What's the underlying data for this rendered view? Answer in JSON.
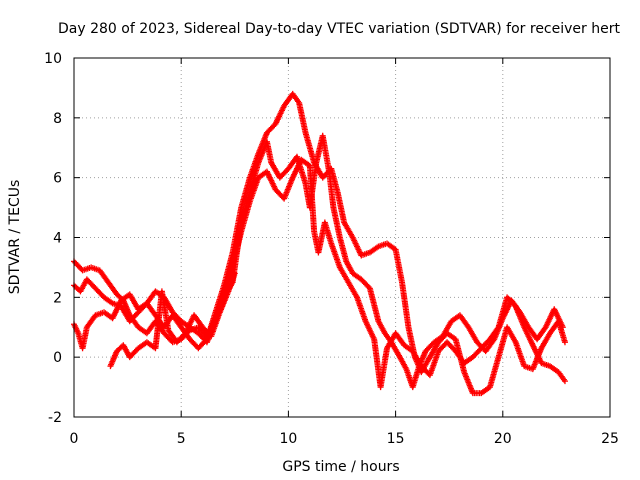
{
  "chart_data": {
    "type": "scatter",
    "title": "Day 280 of 2023, Sidereal Day-to-day VTEC variation (SDTVAR) for receiver hert",
    "xlabel": "GPS time / hours",
    "ylabel": "SDTVAR / TECUs",
    "xlim": [
      0,
      25
    ],
    "ylim": [
      -2,
      10
    ],
    "xticks": [
      0,
      5,
      10,
      15,
      20,
      25
    ],
    "yticks": [
      -2,
      0,
      2,
      4,
      6,
      8,
      10
    ],
    "grid": true,
    "marker": "+",
    "color": "#ff0000",
    "series": [
      {
        "name": "trace-1",
        "points": [
          [
            0,
            3.2
          ],
          [
            0.4,
            2.9
          ],
          [
            0.8,
            3.0
          ],
          [
            1.2,
            2.9
          ],
          [
            1.6,
            2.5
          ],
          [
            2.0,
            2.1
          ],
          [
            2.3,
            1.9
          ],
          [
            2.6,
            1.4
          ],
          [
            3.0,
            1.0
          ],
          [
            3.4,
            0.8
          ],
          [
            3.8,
            1.2
          ],
          [
            4.2,
            0.8
          ],
          [
            4.6,
            0.5
          ],
          [
            5.0,
            0.6
          ],
          [
            5.4,
            0.9
          ],
          [
            5.8,
            1.0
          ],
          [
            6.2,
            0.7
          ],
          [
            6.6,
            1.3
          ],
          [
            7.0,
            2.0
          ],
          [
            7.4,
            2.5
          ],
          [
            7.8,
            4.5
          ],
          [
            8.2,
            5.5
          ],
          [
            8.6,
            6.5
          ],
          [
            9.0,
            7.2
          ],
          [
            9.2,
            6.5
          ],
          [
            9.6,
            6.0
          ],
          [
            10.0,
            6.3
          ],
          [
            10.4,
            6.7
          ],
          [
            10.8,
            5.8
          ],
          [
            11.0,
            5.0
          ],
          [
            11.3,
            6.5
          ],
          [
            11.6,
            7.4
          ],
          [
            11.9,
            6.2
          ],
          [
            12.1,
            5.0
          ],
          [
            12.4,
            4.0
          ],
          [
            12.7,
            3.2
          ],
          [
            13.0,
            2.8
          ],
          [
            13.4,
            2.6
          ],
          [
            13.8,
            2.3
          ],
          [
            14.2,
            1.2
          ],
          [
            14.5,
            0.8
          ],
          [
            14.8,
            0.5
          ],
          [
            15.2,
            0.0
          ],
          [
            15.5,
            -0.4
          ],
          [
            15.8,
            -1.0
          ],
          [
            16.1,
            -0.3
          ],
          [
            16.4,
            0.2
          ],
          [
            16.8,
            0.5
          ],
          [
            17.2,
            0.7
          ],
          [
            17.6,
            1.2
          ],
          [
            18.0,
            1.4
          ],
          [
            18.4,
            1.0
          ],
          [
            18.8,
            0.5
          ],
          [
            19.2,
            0.2
          ],
          [
            19.6,
            0.6
          ],
          [
            20.0,
            1.3
          ],
          [
            20.4,
            1.9
          ],
          [
            20.8,
            1.5
          ],
          [
            21.2,
            1.0
          ],
          [
            21.6,
            0.6
          ],
          [
            22.0,
            1.0
          ],
          [
            22.4,
            1.6
          ],
          [
            22.8,
            1.0
          ]
        ]
      },
      {
        "name": "trace-2",
        "points": [
          [
            0,
            2.4
          ],
          [
            0.3,
            2.2
          ],
          [
            0.6,
            2.6
          ],
          [
            1.0,
            2.3
          ],
          [
            1.4,
            2.0
          ],
          [
            1.8,
            1.8
          ],
          [
            2.2,
            1.7
          ],
          [
            2.6,
            1.2
          ],
          [
            3.0,
            1.5
          ],
          [
            3.4,
            1.8
          ],
          [
            3.8,
            1.4
          ],
          [
            4.2,
            1.0
          ],
          [
            4.6,
            1.4
          ],
          [
            5.0,
            1.0
          ],
          [
            5.4,
            0.6
          ],
          [
            5.8,
            0.3
          ],
          [
            6.2,
            0.6
          ],
          [
            6.6,
            1.5
          ],
          [
            7.0,
            2.4
          ],
          [
            7.4,
            3.5
          ],
          [
            7.8,
            5.0
          ],
          [
            8.2,
            6.0
          ],
          [
            8.6,
            6.8
          ],
          [
            9.0,
            7.5
          ],
          [
            9.4,
            7.8
          ],
          [
            9.8,
            8.4
          ],
          [
            10.2,
            8.8
          ],
          [
            10.5,
            8.5
          ],
          [
            10.8,
            7.5
          ],
          [
            11.2,
            6.5
          ],
          [
            11.6,
            6.0
          ],
          [
            12.0,
            6.3
          ],
          [
            12.3,
            5.5
          ],
          [
            12.6,
            4.5
          ],
          [
            13.0,
            4.0
          ],
          [
            13.4,
            3.4
          ],
          [
            13.8,
            3.5
          ],
          [
            14.2,
            3.7
          ],
          [
            14.6,
            3.8
          ],
          [
            15.0,
            3.6
          ],
          [
            15.3,
            2.5
          ],
          [
            15.6,
            1.0
          ],
          [
            15.9,
            0.0
          ],
          [
            16.2,
            -0.5
          ],
          [
            16.6,
            0.0
          ],
          [
            17.0,
            0.5
          ],
          [
            17.4,
            0.8
          ],
          [
            17.8,
            0.6
          ],
          [
            18.2,
            -0.5
          ],
          [
            18.6,
            -1.2
          ],
          [
            19.0,
            -1.2
          ],
          [
            19.4,
            -1.0
          ],
          [
            19.8,
            0.0
          ],
          [
            20.2,
            1.0
          ],
          [
            20.6,
            0.5
          ],
          [
            21.0,
            -0.3
          ],
          [
            21.4,
            -0.4
          ],
          [
            21.8,
            0.3
          ],
          [
            22.2,
            0.8
          ],
          [
            22.6,
            1.2
          ],
          [
            22.9,
            0.5
          ]
        ]
      },
      {
        "name": "trace-3",
        "points": [
          [
            0,
            1.1
          ],
          [
            0.2,
            0.8
          ],
          [
            0.4,
            0.3
          ],
          [
            0.6,
            1.0
          ],
          [
            1.0,
            1.4
          ],
          [
            1.4,
            1.5
          ],
          [
            1.8,
            1.3
          ],
          [
            2.2,
            1.9
          ],
          [
            2.6,
            2.1
          ],
          [
            3.0,
            1.6
          ],
          [
            3.4,
            1.8
          ],
          [
            3.8,
            2.2
          ],
          [
            4.2,
            2.0
          ],
          [
            4.6,
            1.5
          ],
          [
            5.0,
            1.2
          ],
          [
            5.4,
            1.0
          ],
          [
            5.8,
            0.8
          ],
          [
            6.2,
            0.5
          ],
          [
            6.6,
            1.2
          ],
          [
            7.0,
            2.0
          ],
          [
            7.4,
            3.0
          ],
          [
            7.8,
            4.2
          ],
          [
            8.2,
            5.2
          ],
          [
            8.6,
            6.0
          ],
          [
            9.0,
            6.2
          ],
          [
            9.4,
            5.6
          ],
          [
            9.8,
            5.3
          ],
          [
            10.2,
            6.0
          ],
          [
            10.6,
            6.6
          ],
          [
            11.0,
            6.4
          ],
          [
            11.2,
            4.2
          ],
          [
            11.4,
            3.5
          ],
          [
            11.7,
            4.5
          ],
          [
            12.0,
            3.8
          ],
          [
            12.4,
            3.0
          ],
          [
            12.8,
            2.5
          ],
          [
            13.2,
            2.0
          ],
          [
            13.6,
            1.2
          ],
          [
            14.0,
            0.6
          ],
          [
            14.3,
            -1.0
          ],
          [
            14.6,
            0.3
          ],
          [
            15.0,
            0.8
          ],
          [
            15.4,
            0.4
          ],
          [
            15.8,
            0.2
          ],
          [
            16.2,
            -0.3
          ],
          [
            16.6,
            -0.6
          ],
          [
            17.0,
            0.2
          ],
          [
            17.4,
            0.5
          ],
          [
            17.8,
            0.2
          ],
          [
            18.2,
            -0.2
          ],
          [
            18.6,
            0.0
          ],
          [
            19.0,
            0.3
          ],
          [
            19.4,
            0.6
          ],
          [
            19.8,
            1.0
          ],
          [
            20.2,
            2.0
          ],
          [
            20.6,
            1.7
          ],
          [
            21.0,
            1.0
          ],
          [
            21.4,
            0.4
          ],
          [
            21.8,
            -0.2
          ],
          [
            22.2,
            -0.3
          ],
          [
            22.6,
            -0.5
          ],
          [
            22.9,
            -0.8
          ]
        ]
      },
      {
        "name": "trace-4",
        "points": [
          [
            1.7,
            -0.3
          ],
          [
            2.0,
            0.2
          ],
          [
            2.3,
            0.4
          ],
          [
            2.6,
            0.0
          ],
          [
            3.0,
            0.3
          ],
          [
            3.4,
            0.5
          ],
          [
            3.8,
            0.3
          ],
          [
            4.1,
            2.2
          ],
          [
            4.4,
            0.9
          ],
          [
            4.8,
            0.5
          ],
          [
            5.2,
            0.8
          ],
          [
            5.6,
            1.4
          ],
          [
            6.0,
            1.0
          ],
          [
            6.4,
            0.7
          ],
          [
            6.8,
            1.5
          ],
          [
            7.2,
            2.2
          ],
          [
            7.5,
            2.8
          ]
        ]
      }
    ]
  }
}
